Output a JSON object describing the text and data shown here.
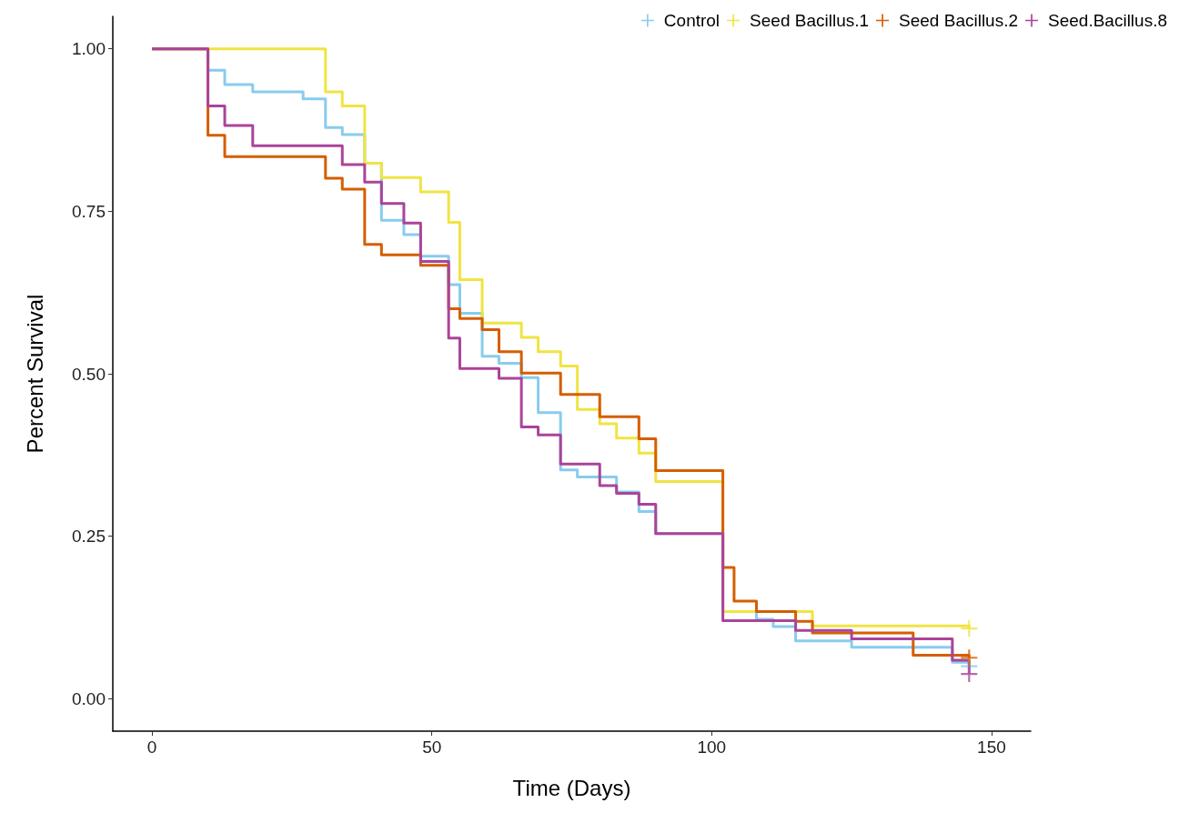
{
  "chart_data": {
    "type": "step",
    "xlabel": "Time (Days)",
    "ylabel": "Percent Survival",
    "xlim": [
      -7,
      157
    ],
    "xticks": [
      0,
      50,
      100,
      150
    ],
    "ylim": [
      -0.05,
      1.05
    ],
    "yticks": [
      {
        "value": 0,
        "label": "0.00"
      },
      {
        "value": 0.25,
        "label": "0.25"
      },
      {
        "value": 0.5,
        "label": "0.50"
      },
      {
        "value": 0.75,
        "label": "0.75"
      },
      {
        "value": 1,
        "label": "1.00"
      }
    ],
    "grid": false,
    "legend": "top right",
    "marker": "cross",
    "line_style": "solid",
    "series": [
      {
        "name": "Control",
        "marker": "none",
        "color": "#88ccee",
        "x": [
          0,
          10,
          13,
          18,
          27,
          31,
          34,
          38,
          41,
          45,
          48,
          53,
          55,
          59,
          62,
          66,
          69,
          73,
          76,
          83,
          87,
          90,
          102,
          108,
          111,
          115,
          125,
          143,
          146
        ],
        "values": [
          1,
          0.967,
          0.945,
          0.934,
          0.923,
          0.879,
          0.868,
          0.824,
          0.736,
          0.714,
          0.681,
          0.637,
          0.593,
          0.527,
          0.516,
          0.494,
          0.44,
          0.352,
          0.341,
          0.318,
          0.288,
          0.254,
          0.134,
          0.122,
          0.111,
          0.089,
          0.079,
          0.056,
          0.05
        ]
      },
      {
        "name": "Seed Bacillus.1",
        "marker": "none",
        "color": "#f0e442",
        "x": [
          0,
          31,
          34,
          38,
          41,
          48,
          53,
          55,
          59,
          66,
          69,
          73,
          76,
          80,
          83,
          87,
          90,
          102,
          118,
          146
        ],
        "values": [
          1,
          0.934,
          0.912,
          0.824,
          0.802,
          0.78,
          0.733,
          0.645,
          0.578,
          0.556,
          0.534,
          0.512,
          0.445,
          0.423,
          0.401,
          0.378,
          0.334,
          0.134,
          0.112,
          0.108
        ]
      },
      {
        "name": "Seed Bacillus.2",
        "marker": "none",
        "color": "#d55e00",
        "x": [
          0,
          10,
          13,
          31,
          34,
          38,
          41,
          48,
          53,
          55,
          59,
          62,
          66,
          73,
          80,
          87,
          90,
          102,
          104,
          108,
          115,
          118,
          136,
          146
        ],
        "values": [
          1,
          0.867,
          0.834,
          0.801,
          0.784,
          0.699,
          0.683,
          0.667,
          0.6,
          0.585,
          0.568,
          0.534,
          0.501,
          0.468,
          0.434,
          0.4,
          0.351,
          0.202,
          0.15,
          0.134,
          0.119,
          0.101,
          0.067,
          0.063
        ]
      },
      {
        "name": "Seed.Bacillus.8",
        "marker": "none",
        "color": "#aa4499",
        "x": [
          0,
          10,
          13,
          18,
          34,
          38,
          41,
          45,
          48,
          53,
          55,
          62,
          66,
          69,
          73,
          80,
          83,
          87,
          90,
          102,
          115,
          125,
          143,
          146
        ],
        "values": [
          1,
          0.912,
          0.882,
          0.851,
          0.822,
          0.795,
          0.762,
          0.732,
          0.673,
          0.555,
          0.508,
          0.493,
          0.418,
          0.406,
          0.361,
          0.328,
          0.316,
          0.299,
          0.254,
          0.12,
          0.105,
          0.092,
          0.059,
          0.038
        ]
      },
      {
        "type": "scatter",
        "color": "#88ccee",
        "x": [
          146
        ],
        "values": [
          0.05
        ]
      },
      {
        "type": "scatter",
        "color": "#f0e442",
        "x": [
          146
        ],
        "values": [
          0.108
        ]
      },
      {
        "type": "scatter",
        "color": "#d55e00",
        "x": [
          146
        ],
        "values": [
          0.063
        ]
      },
      {
        "type": "scatter",
        "color": "#aa4499",
        "x": [
          146
        ],
        "values": [
          0.038
        ]
      }
    ]
  }
}
